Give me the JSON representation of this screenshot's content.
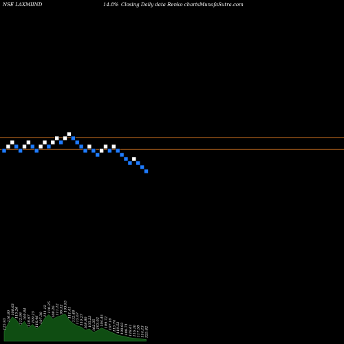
{
  "header": {
    "symbol": "NSE LAXMIIND",
    "change": "14.8%",
    "chart_desc": "Closing Daily data Renko charts",
    "site": "MunafaSutra.com"
  },
  "colors": {
    "background": "#000000",
    "up_brick": "#ffffff",
    "down_brick": "#1e7bff",
    "resistance_line": "#b5651d",
    "volume_fill": "#0f4d12",
    "volume_stroke": "#2e7d32",
    "volume_label": "#ffffff"
  },
  "chart_data": {
    "type": "renko",
    "bricks": [
      {
        "dir": "down",
        "level": 0
      },
      {
        "dir": "up",
        "level": 1
      },
      {
        "dir": "up",
        "level": 2
      },
      {
        "dir": "down",
        "level": 1
      },
      {
        "dir": "down",
        "level": 0
      },
      {
        "dir": "up",
        "level": 1
      },
      {
        "dir": "up",
        "level": 2
      },
      {
        "dir": "down",
        "level": 1
      },
      {
        "dir": "down",
        "level": 0
      },
      {
        "dir": "up",
        "level": 1
      },
      {
        "dir": "up",
        "level": 2
      },
      {
        "dir": "down",
        "level": 1
      },
      {
        "dir": "up",
        "level": 2
      },
      {
        "dir": "up",
        "level": 3
      },
      {
        "dir": "down",
        "level": 2
      },
      {
        "dir": "up",
        "level": 3
      },
      {
        "dir": "up",
        "level": 4
      },
      {
        "dir": "down",
        "level": 3
      },
      {
        "dir": "down",
        "level": 2
      },
      {
        "dir": "down",
        "level": 1
      },
      {
        "dir": "down",
        "level": 0
      },
      {
        "dir": "up",
        "level": 1
      },
      {
        "dir": "down",
        "level": 0
      },
      {
        "dir": "down",
        "level": -1
      },
      {
        "dir": "up",
        "level": 0
      },
      {
        "dir": "up",
        "level": 1
      },
      {
        "dir": "down",
        "level": 0
      },
      {
        "dir": "up",
        "level": 1
      },
      {
        "dir": "down",
        "level": 0
      },
      {
        "dir": "down",
        "level": -1
      },
      {
        "dir": "down",
        "level": -2
      },
      {
        "dir": "down",
        "level": -3
      },
      {
        "dir": "up",
        "level": -2
      },
      {
        "dir": "down",
        "level": -3
      },
      {
        "dir": "down",
        "level": -4
      },
      {
        "dir": "down",
        "level": -5
      }
    ],
    "resistance_lines": [
      {
        "name": "upper",
        "level": 3.2
      },
      {
        "name": "lower",
        "level": 0.3
      }
    ],
    "volume": {
      "values": [
        22,
        40,
        55,
        48,
        35,
        45,
        30,
        38,
        28,
        36,
        52,
        60,
        50,
        55,
        58,
        62,
        48,
        40,
        35,
        32,
        25,
        28,
        20,
        24,
        30,
        26,
        22,
        18,
        14,
        12,
        10,
        8,
        7,
        6,
        5,
        4
      ],
      "labels": [
        "125.93",
        "116.80",
        "108.63",
        "115.26",
        "112.96",
        "109.84",
        "118.67",
        "109.25",
        "116.46",
        "107.30",
        "111.12",
        "110.25",
        "108.26",
        "111.12",
        "99.32",
        "103.93",
        "111.41",
        "112.48",
        "115.67",
        "110.27",
        "108.80",
        "105.23",
        "102.35",
        "103.02",
        "104.45",
        "109.72",
        "107.10",
        "113.74",
        "110.52",
        "109.93",
        "109.71",
        "118.61",
        "116.10",
        "117.58",
        "114.13",
        "125.82"
      ]
    }
  }
}
